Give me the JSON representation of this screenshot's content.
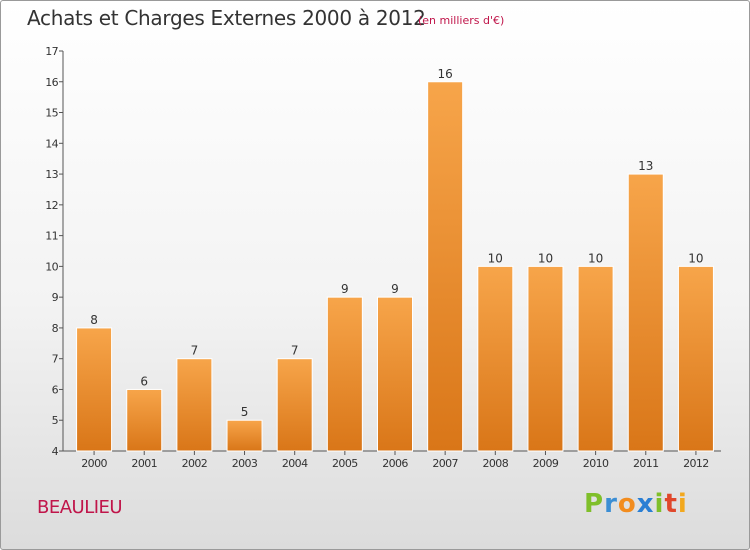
{
  "title": "Achats et Charges Externes 2000 à 2012",
  "unit": "(en milliers d'€)",
  "location": "BEAULIEU",
  "brand": {
    "name": "Proxiti",
    "letters": [
      "P",
      "r",
      "o",
      "x",
      "i",
      "t",
      "i"
    ],
    "letter_colors": [
      "#7fbf2a",
      "#3b8ed4",
      "#f28c1e",
      "#2a7fd4",
      "#7fbf2a",
      "#e0472b",
      "#f2a81e"
    ]
  },
  "colors": {
    "bar_light": "#f7a54a",
    "bar_dark": "#d97618",
    "axis": "#555555"
  },
  "chart_data": {
    "type": "bar",
    "title": "Achats et Charges Externes 2000 à 2012",
    "categories": [
      "2000",
      "2001",
      "2002",
      "2003",
      "2004",
      "2005",
      "2006",
      "2007",
      "2008",
      "2009",
      "2010",
      "2011",
      "2012"
    ],
    "values": [
      8,
      6,
      7,
      5,
      7,
      9,
      9,
      16,
      10,
      10,
      10,
      13,
      10
    ],
    "ylim": [
      4,
      17
    ],
    "yticks": [
      4,
      5,
      6,
      7,
      8,
      9,
      10,
      11,
      12,
      13,
      14,
      15,
      16,
      17
    ],
    "grid": false,
    "legend": "none"
  }
}
